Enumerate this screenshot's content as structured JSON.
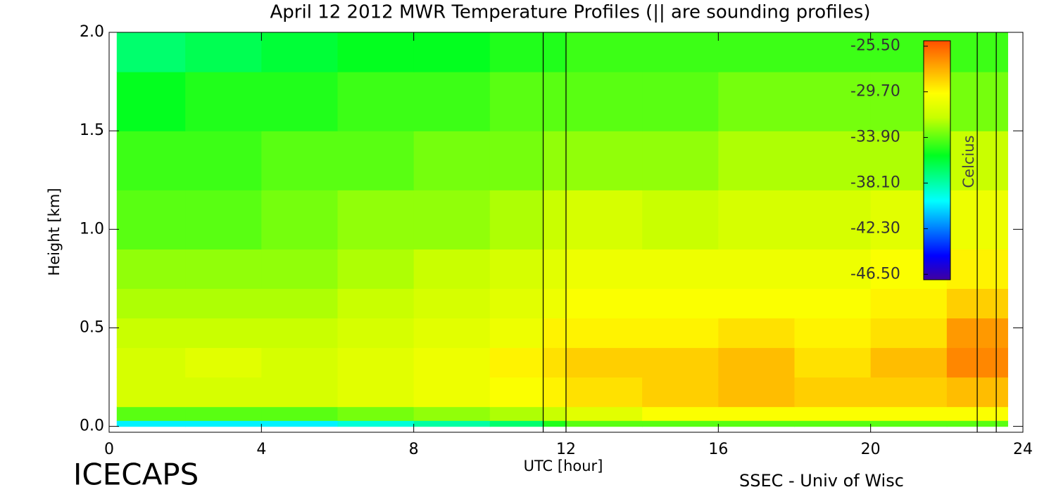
{
  "chart_data": {
    "type": "heatmap",
    "title": "April 12 2012 MWR Temperature Profiles (|| are sounding profiles)",
    "x_label": "UTC [hour]",
    "y_label": "Height [km]",
    "colorbar_label": "Celcius",
    "footer_left": "ICECAPS",
    "footer_right": "SSEC - Univ of Wisc",
    "xlim": [
      0,
      24
    ],
    "xticks": [
      0,
      4,
      8,
      12,
      16,
      20,
      24
    ],
    "ylim": [
      -0.03,
      2.0
    ],
    "yticks": [
      {
        "value": 0,
        "label": "0.0"
      },
      {
        "value": 0.5,
        "label": "0.5"
      },
      {
        "value": 1,
        "label": "1.0"
      },
      {
        "value": 1.5,
        "label": "1.5"
      },
      {
        "value": 2,
        "label": "2.0"
      }
    ],
    "clim": [
      -47,
      -25
    ],
    "cticks": [
      {
        "value": -25.5,
        "label": "-25.50"
      },
      {
        "value": -29.7,
        "label": "-29.70"
      },
      {
        "value": -33.9,
        "label": "-33.90"
      },
      {
        "value": -38.1,
        "label": "-38.10"
      },
      {
        "value": -42.3,
        "label": "-42.30"
      },
      {
        "value": -46.5,
        "label": "-46.50"
      }
    ],
    "xbins": [
      0.2,
      2,
      4,
      6,
      8,
      10,
      11.4,
      12,
      14,
      16,
      18,
      20,
      22,
      23.6
    ],
    "ybins": [
      0,
      0.03,
      0.1,
      0.25,
      0.4,
      0.55,
      0.7,
      0.9,
      1.2,
      1.5,
      1.8,
      2.0
    ],
    "values": [
      [
        -40,
        -40,
        -40,
        -39,
        -38,
        -37,
        -35,
        -34,
        -34,
        -34,
        -34,
        -34,
        -34
      ],
      [
        -34,
        -34,
        -34,
        -33.5,
        -33,
        -32.5,
        -32,
        -31,
        -30,
        -30,
        -30,
        -30,
        -30
      ],
      [
        -31.5,
        -31.5,
        -31.5,
        -31,
        -30.5,
        -30,
        -29.5,
        -29,
        -28.5,
        -28,
        -28.5,
        -28.5,
        -28
      ],
      [
        -31.5,
        -31,
        -31.5,
        -31,
        -30.5,
        -29.5,
        -29,
        -28.5,
        -28.5,
        -28,
        -29,
        -28,
        -26.5
      ],
      [
        -32,
        -32,
        -32,
        -31.5,
        -31,
        -30.5,
        -29.5,
        -29.5,
        -29.5,
        -29,
        -29.5,
        -29,
        -27
      ],
      [
        -32.5,
        -32.5,
        -32.5,
        -32,
        -31.5,
        -31,
        -30.5,
        -30,
        -30,
        -30,
        -30,
        -29.5,
        -28.5
      ],
      [
        -33,
        -33,
        -33,
        -32.5,
        -32,
        -31.5,
        -31,
        -30.5,
        -30.5,
        -30.5,
        -30.5,
        -30,
        -29.5
      ],
      [
        -34,
        -34,
        -33.5,
        -33,
        -33,
        -32.5,
        -32,
        -31.5,
        -32,
        -31.5,
        -31.5,
        -31,
        -30.5
      ],
      [
        -34.5,
        -34.5,
        -34,
        -34,
        -33.5,
        -33.5,
        -33,
        -33,
        -33,
        -32.5,
        -32.5,
        -32.5,
        -32
      ],
      [
        -35.5,
        -35,
        -35,
        -34.5,
        -34.5,
        -34,
        -34,
        -34,
        -34,
        -33.5,
        -33.5,
        -33.5,
        -33.5
      ],
      [
        -37,
        -36.5,
        -36,
        -35.5,
        -35.5,
        -35,
        -35,
        -34.5,
        -34.5,
        -34.5,
        -34.5,
        -34.5,
        -34.5
      ]
    ],
    "soundings": [
      11.4,
      12.0,
      22.8,
      23.3
    ]
  }
}
